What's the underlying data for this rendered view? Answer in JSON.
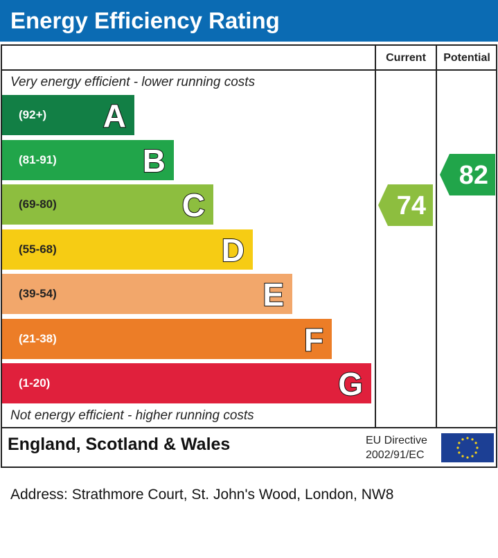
{
  "header": {
    "title": "Energy Efficiency Rating"
  },
  "columns": {
    "current": "Current",
    "potential": "Potential"
  },
  "captions": {
    "top": "Very energy efficient - lower running costs",
    "bottom": "Not energy efficient - higher running costs"
  },
  "chart_data": {
    "type": "bar",
    "categories": [
      "A",
      "B",
      "C",
      "D",
      "E",
      "F",
      "G"
    ],
    "bands": [
      {
        "letter": "A",
        "range": "(92+)",
        "min": 92,
        "max": 100,
        "color": "#127f45"
      },
      {
        "letter": "B",
        "range": "(81-91)",
        "min": 81,
        "max": 91,
        "color": "#21a54a"
      },
      {
        "letter": "C",
        "range": "(69-80)",
        "min": 69,
        "max": 80,
        "color": "#8dbe3f"
      },
      {
        "letter": "D",
        "range": "(55-68)",
        "min": 55,
        "max": 68,
        "color": "#f6cc14"
      },
      {
        "letter": "E",
        "range": "(39-54)",
        "min": 39,
        "max": 54,
        "color": "#f2a76b"
      },
      {
        "letter": "F",
        "range": "(21-38)",
        "min": 21,
        "max": 38,
        "color": "#ec7d27"
      },
      {
        "letter": "G",
        "range": "(1-20)",
        "min": 1,
        "max": 20,
        "color": "#e0203c"
      }
    ],
    "current": {
      "value": 74,
      "band": "C",
      "color": "#8dbe3f"
    },
    "potential": {
      "value": 82,
      "band": "B",
      "color": "#21a54a"
    }
  },
  "footer": {
    "region": "England, Scotland & Wales",
    "directive_line1": "EU Directive",
    "directive_line2": "2002/91/EC",
    "flag_icon": "eu-flag-icon"
  },
  "address": "Address: Strathmore Court, St. John's Wood, London, NW8"
}
